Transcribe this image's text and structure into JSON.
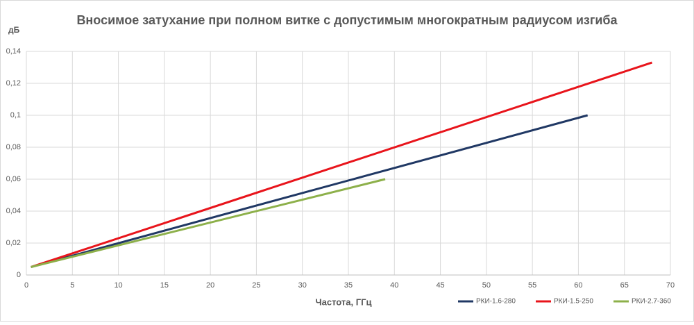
{
  "chart_data": {
    "type": "line",
    "title": "Вносимое затухание при полном витке с допустимым многократным радиусом изгиба",
    "ylabel": "дБ",
    "xlabel": "Частота, ГГц",
    "xlim": [
      0,
      70
    ],
    "xticks": [
      0,
      5,
      10,
      15,
      20,
      25,
      30,
      35,
      40,
      45,
      50,
      55,
      60,
      65,
      70
    ],
    "ylim": [
      0,
      0.14
    ],
    "yticks": [
      0,
      {
        "value": 0.02,
        "label": "0,02"
      },
      {
        "value": 0.04,
        "label": "0,04"
      },
      {
        "value": 0.06,
        "label": "0,06"
      },
      {
        "value": 0.08,
        "label": "0,08"
      },
      {
        "value": 0.1,
        "label": "0,1"
      },
      {
        "value": 0.12,
        "label": "0,12"
      },
      {
        "value": 0.14,
        "label": "0,14"
      }
    ],
    "grid": true,
    "legend": "bottom-right",
    "series": [
      {
        "name": "РКИ-1.6-280",
        "color": "#203864",
        "x": [
          0.5,
          61
        ],
        "values": [
          0.005,
          0.1
        ]
      },
      {
        "name": "РКИ-1.5-250",
        "color": "#e8141b",
        "x": [
          0.5,
          68
        ],
        "values": [
          0.005,
          0.133
        ]
      },
      {
        "name": "РКИ-2.7-360",
        "color": "#8db04a",
        "x": [
          0.5,
          39
        ],
        "values": [
          0.005,
          0.06
        ]
      }
    ]
  }
}
